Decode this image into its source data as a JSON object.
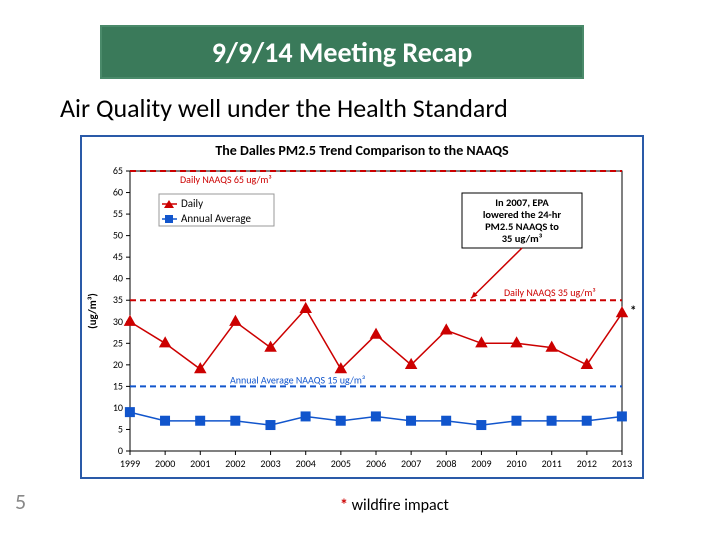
{
  "title_bar": "9/9/14 Meeting Recap",
  "subtitle": "Air Quality well under the Health Standard",
  "page_number": "5",
  "footnote_star": "*",
  "footnote_text": " wildfire impact",
  "chart": {
    "type": "line",
    "title": "The Dalles PM2.5 Trend Comparison to the NAAQS",
    "title_fontsize": 14,
    "title_color": "#000000",
    "plot_border_color": "#2a5aa8",
    "background_color": "#ffffff",
    "xlim": [
      1999,
      2013
    ],
    "ylim": [
      0,
      65
    ],
    "ytick_step": 5,
    "yticks": [
      0,
      5,
      10,
      15,
      20,
      25,
      30,
      35,
      40,
      45,
      50,
      55,
      60,
      65
    ],
    "xlabels": [
      "1999",
      "2000",
      "2001",
      "2002",
      "2003",
      "2004",
      "2005",
      "2006",
      "2007",
      "2008",
      "2009",
      "2010",
      "2011",
      "2012",
      "2013"
    ],
    "ylabel": "(ug/m³)",
    "axis_fontsize": 10,
    "axis_color": "#000000",
    "grid": false,
    "series": [
      {
        "name": "Daily",
        "color": "#cc0000",
        "marker": "triangle",
        "marker_size": 6,
        "line_width": 1.5,
        "values": [
          30,
          25,
          19,
          30,
          24,
          33,
          19,
          27,
          20,
          28,
          25,
          25,
          24,
          20,
          32
        ]
      },
      {
        "name": "Annual Average",
        "color": "#1155cc",
        "marker": "square",
        "marker_size": 6,
        "line_width": 1.5,
        "values": [
          9,
          7,
          7,
          7,
          6,
          8,
          7,
          8,
          7,
          7,
          6,
          7,
          7,
          7,
          8
        ]
      }
    ],
    "ref_lines": [
      {
        "label": "Daily NAAQS 65 ug/m³",
        "value": 65,
        "color": "#cc0000",
        "dash": "6,4",
        "line_width": 2,
        "label_color": "#cc0000",
        "label_fontsize": 10
      },
      {
        "label": "Daily NAAQS 35 ug/m³",
        "value": 35,
        "color": "#cc0000",
        "dash": "6,4",
        "line_width": 2,
        "label_color": "#cc0000",
        "label_fontsize": 10
      },
      {
        "label": "Annual Average NAAQS 15 ug/m³",
        "value": 15,
        "color": "#1155cc",
        "dash": "6,4",
        "line_width": 2,
        "label_color": "#1155cc",
        "label_fontsize": 10
      }
    ],
    "legend": {
      "position": "upper-left-inside",
      "items": [
        {
          "label": "Daily",
          "color": "#cc0000",
          "marker": "triangle"
        },
        {
          "label": "Annual Average",
          "color": "#1155cc",
          "marker": "square"
        }
      ]
    },
    "callout": {
      "lines": [
        "In 2007, EPA",
        "lowered the 24-hr",
        "PM2.5 NAAQS to",
        "35 ug/m³"
      ],
      "arrow_color": "#cc0000",
      "arrow_target_year": 2007,
      "arrow_target_value": 35
    },
    "asterisk_marker": {
      "label": "*",
      "year": 2013,
      "value": 32,
      "color": "#000000",
      "fontsize": 13
    }
  }
}
